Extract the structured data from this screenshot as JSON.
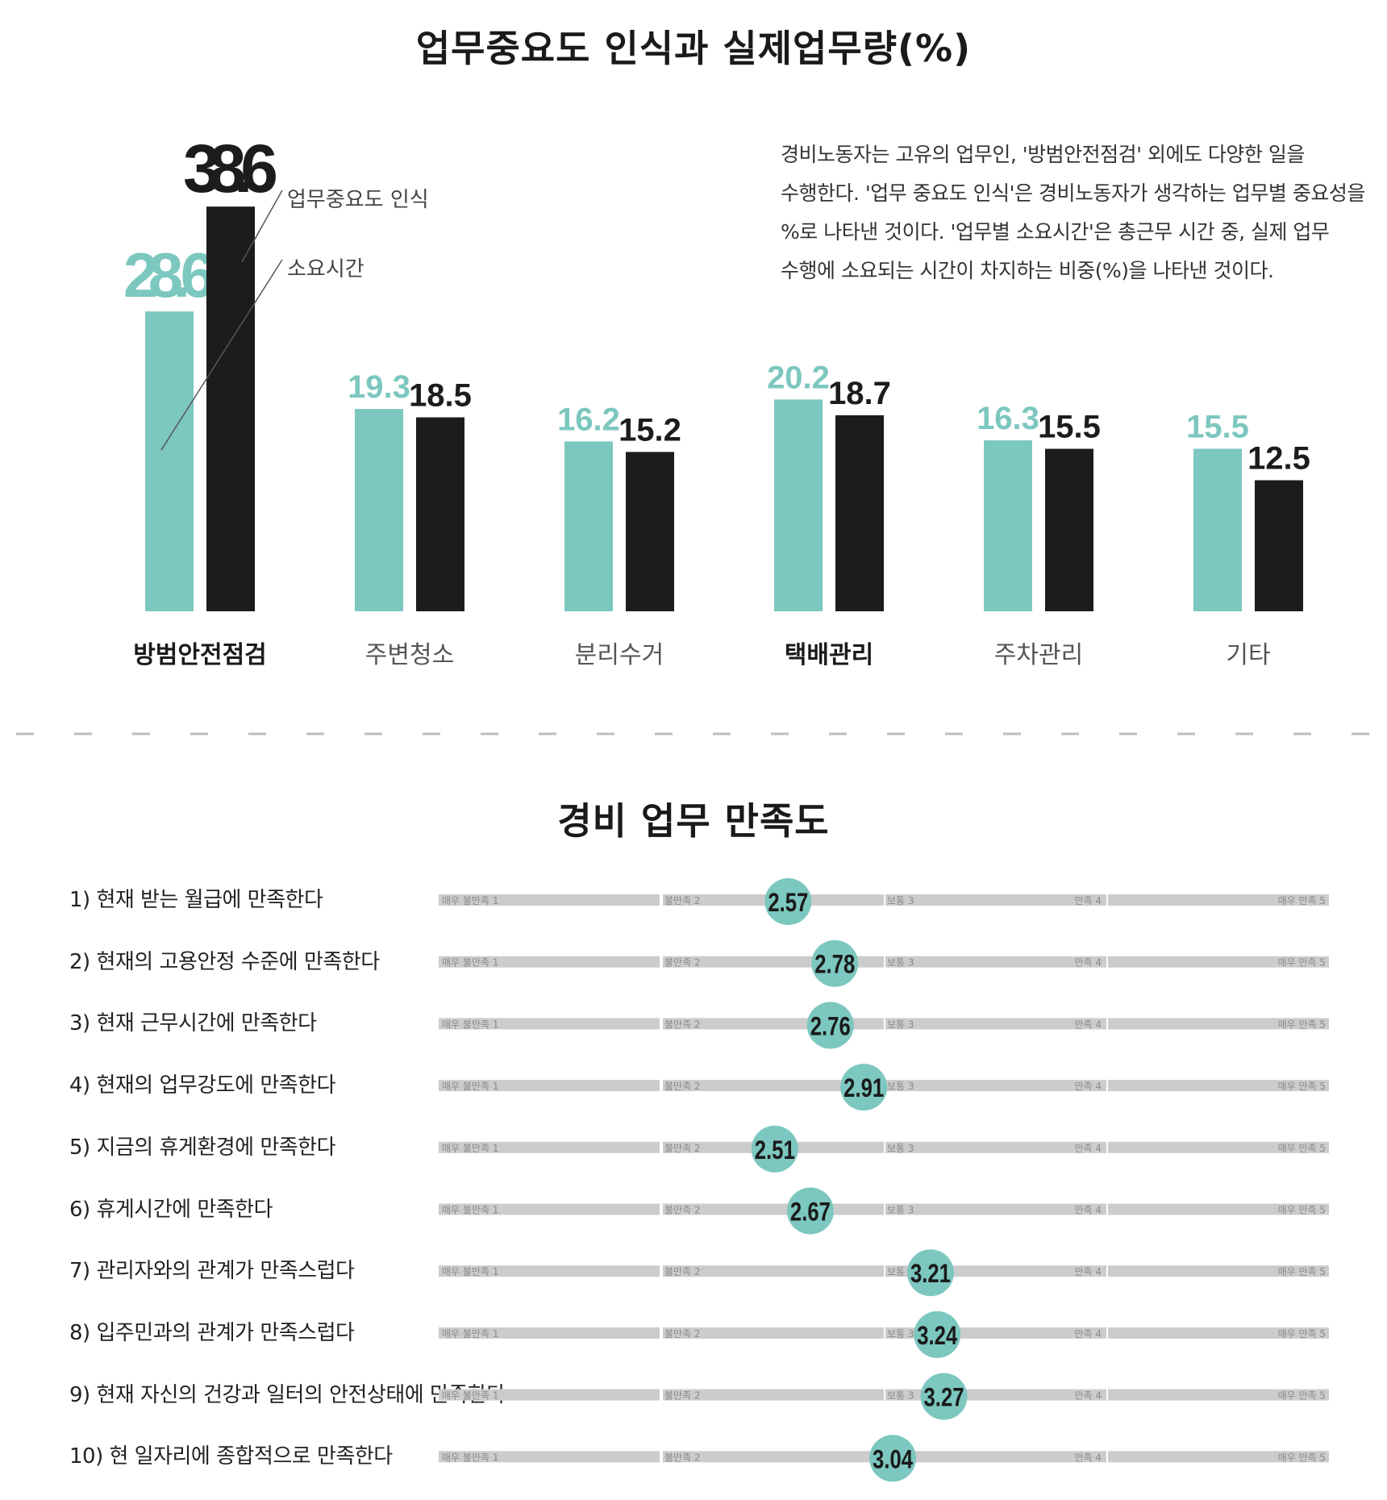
{
  "titles": {
    "importance": "업무중요도 인식과 실제업무량(%)",
    "satisfaction": "경비 업무 만족도"
  },
  "description": [
    "경비노동자는 고유의 업무인, '방범안전점검' 외에도 다양한 일을",
    "수행한다. '업무 중요도 인식'은 경비노동자가 생각하는 업무별 중요성을",
    "%로 나타낸 것이다. '업무별 소요시간'은 총근무 시간 중, 실제 업무",
    "수행에 소요되는 시간이 차지하는 비중(%)을 나타낸 것이다."
  ],
  "colors": {
    "teal": "#7cc7bf",
    "black": "#1c1c1c",
    "track": "#cccccc",
    "track_text": "#8a8a8a"
  },
  "chart_data": [
    {
      "type": "bar",
      "title": "업무중요도 인식과 실제업무량(%)",
      "categories": [
        "방범안전점검",
        "주변청소",
        "분리수거",
        "택배관리",
        "주차관리",
        "기타"
      ],
      "bold_categories": [
        "방범안전점검",
        "택배관리"
      ],
      "series": [
        {
          "values": [
            28.6,
            19.3,
            16.2,
            20.2,
            16.3,
            15.5
          ],
          "color": "#7cc7bf"
        },
        {
          "values": [
            38.6,
            18.5,
            15.2,
            18.7,
            15.5,
            12.5
          ],
          "color": "#1c1c1c"
        }
      ],
      "annotations": [
        "업무중요도 인식",
        "소요시간"
      ],
      "ylim": [
        0,
        40
      ],
      "grid": false
    },
    {
      "type": "scatter",
      "title": "경비 업무 만족도",
      "xlim": [
        1,
        5
      ],
      "scale_labels": [
        "매우 불만족 1",
        "불만족 2",
        "보통 3",
        "만족 4",
        "매우 만족 5"
      ],
      "items": [
        {
          "label": "1) 현재 받는 월급에 만족한다",
          "value": 2.57
        },
        {
          "label": "2) 현재의 고용안정 수준에 만족한다",
          "value": 2.78
        },
        {
          "label": "3) 현재 근무시간에 만족한다",
          "value": 2.76
        },
        {
          "label": "4) 현재의 업무강도에 만족한다",
          "value": 2.91
        },
        {
          "label": "5) 지금의 휴게환경에 만족한다",
          "value": 2.51
        },
        {
          "label": "6) 휴게시간에 만족한다",
          "value": 2.67
        },
        {
          "label": "7) 관리자와의 관계가 만족스럽다",
          "value": 3.21
        },
        {
          "label": "8) 입주민과의 관계가 만족스럽다",
          "value": 3.24
        },
        {
          "label": "9) 현재 자신의 건강과 일터의 안전상태에 만족한다",
          "value": 3.27
        },
        {
          "label": "10) 현 일자리에 종합적으로 만족한다",
          "value": 3.04
        }
      ]
    }
  ]
}
